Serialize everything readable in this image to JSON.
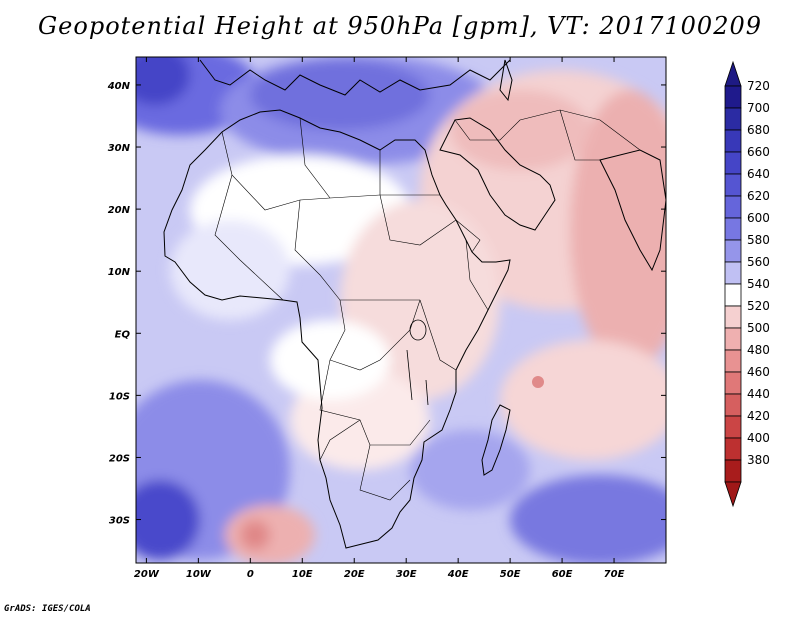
{
  "title": "Geopotential Height at 950hPa [gpm], VT: 2017100209",
  "credit": "GrADS: IGES/COLA",
  "map": {
    "lat_labels": [
      "40N",
      "30N",
      "20N",
      "10N",
      "EQ",
      "10S",
      "20S",
      "30S"
    ],
    "lon_labels": [
      "20W",
      "10W",
      "0",
      "10E",
      "20E",
      "30E",
      "40E",
      "50E",
      "60E",
      "70E"
    ],
    "lat_range": [
      -37,
      44.5
    ],
    "lon_range": [
      -22,
      80
    ]
  },
  "colorbar": {
    "levels": [
      "720",
      "700",
      "680",
      "660",
      "640",
      "620",
      "600",
      "580",
      "560",
      "540",
      "520",
      "500",
      "480",
      "460",
      "440",
      "420",
      "400",
      "380"
    ],
    "colors": [
      "#1f1a8c",
      "#2b2ba3",
      "#3838b8",
      "#4545c7",
      "#5555d2",
      "#6565db",
      "#7777e2",
      "#9595ea",
      "#c0c0f3",
      "#ffffff",
      "#f5d0d0",
      "#efb0b0",
      "#e89292",
      "#e07878",
      "#d65f5f",
      "#cb4545",
      "#bd3030",
      "#a81c1c"
    ],
    "top_arrow_color": "#1e1a84",
    "bottom_arrow_color": "#a01818"
  },
  "chart_data": {
    "type": "heatmap",
    "title": "Geopotential Height at 950hPa [gpm], VT: 2017100209",
    "variable": "Geopotential Height",
    "level": "950hPa",
    "units": "gpm",
    "valid_time": "2017100209",
    "color_levels": [
      380,
      400,
      420,
      440,
      460,
      480,
      500,
      520,
      540,
      560,
      580,
      600,
      620,
      640,
      660,
      680,
      700,
      720
    ],
    "x_ticks": [
      "20W",
      "10W",
      "0",
      "10E",
      "20E",
      "30E",
      "40E",
      "50E",
      "60E",
      "70E"
    ],
    "y_ticks": [
      "40N",
      "30N",
      "20N",
      "10N",
      "EQ",
      "10S",
      "20S",
      "30S"
    ]
  }
}
